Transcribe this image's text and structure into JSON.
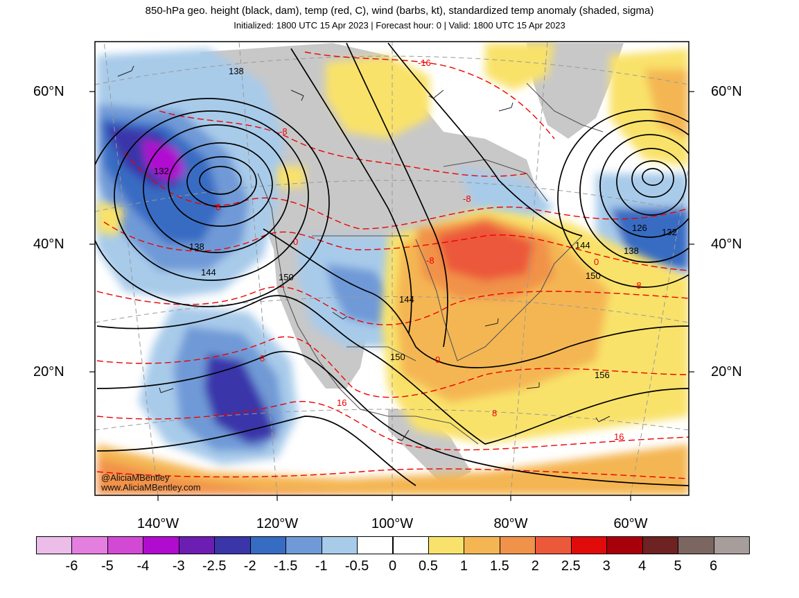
{
  "titles": {
    "main": "850-hPa geo. height (black, dam), temp (red, C), wind (barbs, kt), standardized temp anomaly (shaded, sigma)",
    "sub": "Initialized: 1800 UTC 15 Apr 2023 | Forecast hour: 0 | Valid: 1800 UTC 15 Apr 2023"
  },
  "credit": [
    "@AliciaMBentley",
    "www.AliciaMBentley.com"
  ],
  "lat_labels": [
    "60°N",
    "40°N",
    "20°N"
  ],
  "lon_labels": [
    "140°W",
    "120°W",
    "100°W",
    "80°W",
    "60°W"
  ],
  "colorbar": {
    "colors": [
      "#ebbde8",
      "#e47fe0",
      "#d24ad3",
      "#b10bd0",
      "#6c1eb3",
      "#3b35aa",
      "#376cc3",
      "#6f9ad7",
      "#a8cbea",
      "#ffffff",
      "#ffffff",
      "#f9e26b",
      "#f4b653",
      "#f1924a",
      "#ec593a",
      "#e20b0b",
      "#a8000b",
      "#6e2222",
      "#7b6661",
      "#a79e9b"
    ],
    "ticks": [
      "-6",
      "-5",
      "-4",
      "-3",
      "-2.5",
      "-2",
      "-1.5",
      "-1",
      "-0.5",
      "0",
      "0.5",
      "1",
      "1.5",
      "2",
      "2.5",
      "3",
      "4",
      "5",
      "6"
    ]
  },
  "height_labels": [
    "138",
    "132",
    "138",
    "144",
    "150",
    "144",
    "150",
    "156",
    "144",
    "126",
    "132",
    "138",
    "150"
  ],
  "temp_labels": [
    "-16",
    "-8",
    "-8",
    "0",
    "-8",
    "0",
    "8",
    "16",
    "-8",
    "-8",
    "0",
    "8",
    "16"
  ]
}
